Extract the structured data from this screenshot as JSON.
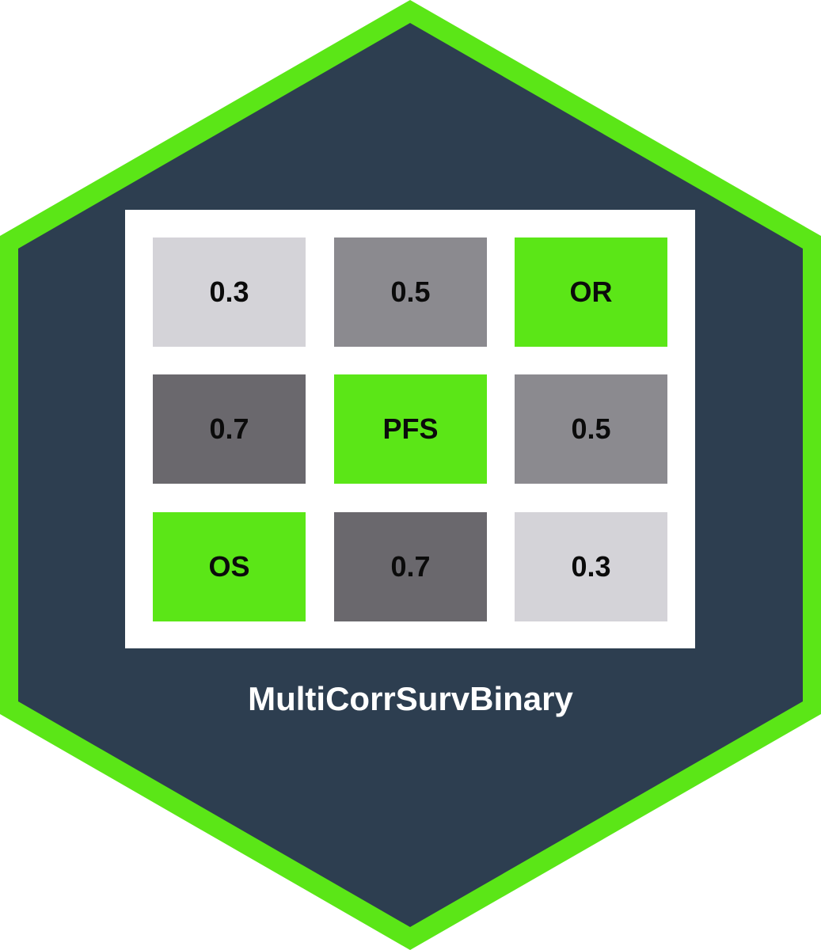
{
  "colors": {
    "hex_border": "#5be617",
    "hex_fill": "#2d3e50",
    "matrix_bg": "#ffffff",
    "light_gray": "#d4d3d8",
    "mid_gray": "#8b8a8f",
    "dark_gray": "#6a686d",
    "green": "#5be617",
    "text": "#0b0b0b",
    "title_text": "#ffffff"
  },
  "matrix": {
    "rows": [
      [
        {
          "label": "0.3",
          "tone": "light_gray"
        },
        {
          "label": "0.5",
          "tone": "mid_gray"
        },
        {
          "label": "OR",
          "tone": "green"
        }
      ],
      [
        {
          "label": "0.7",
          "tone": "dark_gray"
        },
        {
          "label": "PFS",
          "tone": "green"
        },
        {
          "label": "0.5",
          "tone": "mid_gray"
        }
      ],
      [
        {
          "label": "OS",
          "tone": "green"
        },
        {
          "label": "0.7",
          "tone": "dark_gray"
        },
        {
          "label": "0.3",
          "tone": "light_gray"
        }
      ]
    ]
  },
  "title": "MultiCorrSurvBinary"
}
